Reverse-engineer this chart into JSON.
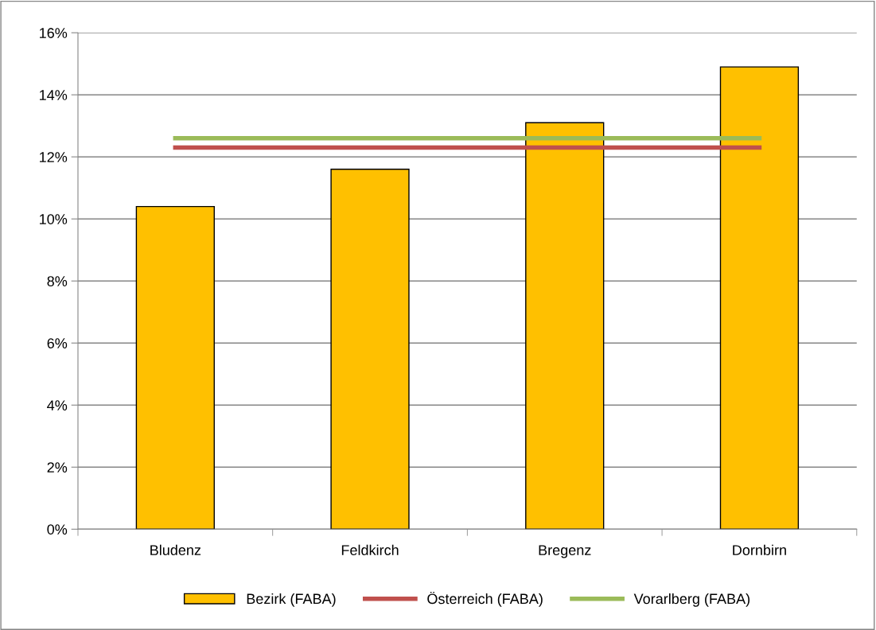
{
  "chart_data": {
    "type": "bar",
    "categories": [
      "Bludenz",
      "Feldkirch",
      "Bregenz",
      "Dornbirn"
    ],
    "series": [
      {
        "name": "Bezirk (FABA)",
        "color": "#ffc000",
        "values": [
          10.4,
          11.6,
          13.1,
          14.9
        ]
      },
      {
        "name": "Österreich (FABA)",
        "type": "line",
        "color": "#c0504d",
        "values": [
          12.3,
          12.3,
          12.3,
          12.3
        ]
      },
      {
        "name": "Vorarlberg (FABA)",
        "type": "line",
        "color": "#9bbb59",
        "values": [
          12.6,
          12.6,
          12.6,
          12.6
        ]
      }
    ],
    "ylim": [
      0,
      16
    ],
    "yticks": [
      {
        "value": 0,
        "label": "0%"
      },
      {
        "value": 2,
        "label": "2%"
      },
      {
        "value": 4,
        "label": "4%"
      },
      {
        "value": 6,
        "label": "6%"
      },
      {
        "value": 8,
        "label": "8%"
      },
      {
        "value": 10,
        "label": "10%"
      },
      {
        "value": 12,
        "label": "12%"
      },
      {
        "value": 14,
        "label": "14%"
      },
      {
        "value": 16,
        "label": "16%"
      }
    ],
    "grid": "y",
    "legend": "bottom",
    "marker": "none",
    "line_style": "solid"
  }
}
